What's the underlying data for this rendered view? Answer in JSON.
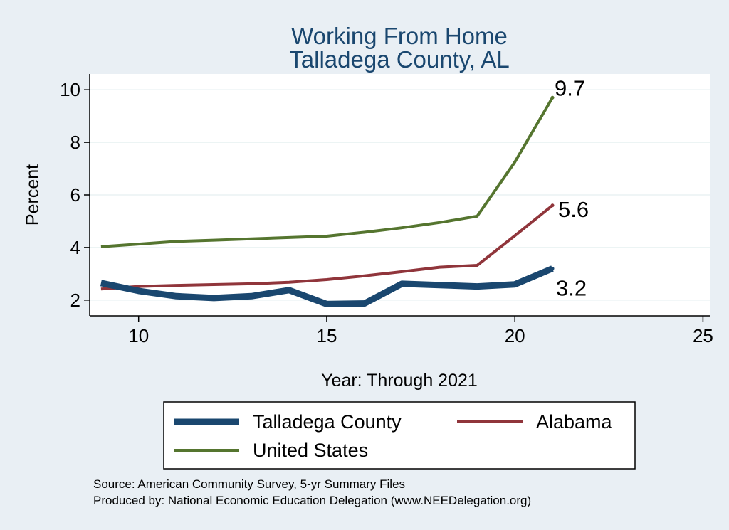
{
  "chart_data": {
    "type": "line",
    "title": "Working From Home",
    "subtitle": "Talladega County, AL",
    "xlabel": "Year: Through 2021",
    "ylabel": "Percent",
    "xlim": [
      8.7,
      25.2
    ],
    "ylim": [
      1.4,
      10.6
    ],
    "xticks": [
      10,
      15,
      20,
      25
    ],
    "yticks": [
      2,
      4,
      6,
      8,
      10
    ],
    "x": [
      9,
      10,
      11,
      12,
      13,
      14,
      15,
      16,
      17,
      18,
      19,
      20,
      21
    ],
    "series": [
      {
        "name": "Talladega County",
        "color": "#1a476f",
        "values": [
          2.65,
          2.35,
          2.15,
          2.08,
          2.15,
          2.38,
          1.85,
          1.87,
          2.62,
          2.57,
          2.52,
          2.6,
          3.2
        ],
        "end_label": "3.2"
      },
      {
        "name": "Alabama",
        "color": "#90353b",
        "values": [
          2.42,
          2.52,
          2.56,
          2.59,
          2.62,
          2.68,
          2.78,
          2.92,
          3.08,
          3.25,
          3.32,
          4.45,
          5.6
        ],
        "end_label": "5.6"
      },
      {
        "name": "United States",
        "color": "#55752f",
        "values": [
          4.03,
          4.13,
          4.23,
          4.28,
          4.33,
          4.38,
          4.43,
          4.58,
          4.75,
          4.95,
          5.19,
          7.25,
          9.7
        ],
        "end_label": "9.7"
      }
    ],
    "legend_position": "bottom",
    "notes": [
      "Source: American Community Survey, 5-yr Summary Files",
      "Produced by: National Economic Education Delegation (www.NEEDelegation.org)"
    ]
  }
}
